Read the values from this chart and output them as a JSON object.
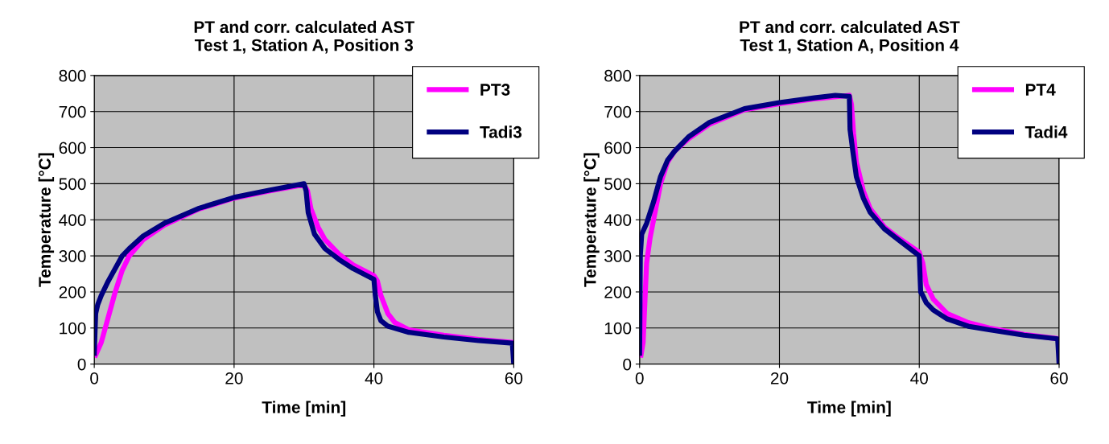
{
  "chart_data": [
    {
      "type": "line",
      "title": "PT and corr. calculated AST\nTest 1, Station A, Position 3",
      "xlabel": "Time [min]",
      "ylabel": "Temperature [°C]",
      "xlim": [
        0,
        60
      ],
      "ylim": [
        0,
        800
      ],
      "xticks": [
        0,
        20,
        40,
        60
      ],
      "yticks": [
        0,
        100,
        200,
        300,
        400,
        500,
        600,
        700,
        800
      ],
      "grid": true,
      "legend": "top right",
      "marker": "none",
      "line_style": "solid",
      "series": [
        {
          "name": "PT3",
          "color": "#ff00ff",
          "x": [
            0.2,
            1,
            2,
            3,
            4,
            5,
            7,
            10,
            15,
            20,
            25,
            30,
            30.5,
            31,
            32,
            33,
            35,
            37,
            40,
            40.5,
            41,
            42,
            43,
            45,
            50,
            55,
            60
          ],
          "values": [
            25,
            60,
            130,
            200,
            260,
            300,
            345,
            385,
            430,
            460,
            480,
            497,
            480,
            430,
            380,
            345,
            305,
            275,
            245,
            230,
            190,
            140,
            115,
            95,
            80,
            68,
            60
          ]
        },
        {
          "name": "Tadi3",
          "color": "#000080",
          "x": [
            0,
            0.2,
            0.5,
            1,
            2,
            3,
            4,
            5,
            7,
            10,
            15,
            20,
            25,
            30,
            30.3,
            30.6,
            31.5,
            33,
            35,
            37,
            40,
            40.2,
            40.5,
            41,
            42,
            45,
            50,
            55,
            59.8,
            60
          ],
          "values": [
            30,
            140,
            165,
            190,
            230,
            265,
            300,
            320,
            355,
            390,
            432,
            462,
            482,
            500,
            480,
            420,
            360,
            320,
            290,
            265,
            235,
            190,
            145,
            120,
            105,
            88,
            75,
            65,
            58,
            0
          ]
        }
      ]
    },
    {
      "type": "line",
      "title": "PT and corr. calculated AST\nTest 1, Station A, Position 4",
      "xlabel": "Time [min]",
      "ylabel": "Temperature [°C]",
      "xlim": [
        0,
        60
      ],
      "ylim": [
        0,
        800
      ],
      "xticks": [
        0,
        20,
        40,
        60
      ],
      "yticks": [
        0,
        100,
        200,
        300,
        400,
        500,
        600,
        700,
        800
      ],
      "grid": true,
      "legend": "top right",
      "marker": "none",
      "line_style": "solid",
      "series": [
        {
          "name": "PT4",
          "color": "#ff00ff",
          "x": [
            0.2,
            0.5,
            1,
            1.5,
            2,
            3,
            4,
            5,
            7,
            10,
            15,
            20,
            25,
            30,
            30.3,
            30.6,
            31,
            32,
            33,
            35,
            37,
            40,
            40.5,
            41,
            42,
            44,
            47,
            50,
            55,
            60
          ],
          "values": [
            25,
            60,
            280,
            350,
            400,
            500,
            560,
            590,
            625,
            665,
            705,
            722,
            735,
            745,
            720,
            640,
            560,
            480,
            430,
            380,
            350,
            310,
            280,
            220,
            180,
            140,
            115,
            100,
            82,
            70
          ]
        },
        {
          "name": "Tadi4",
          "color": "#000080",
          "x": [
            0,
            0.1,
            0.3,
            1,
            2,
            3,
            4,
            5,
            7,
            10,
            15,
            20,
            25,
            28,
            30,
            30.1,
            30.5,
            31,
            32,
            33,
            35,
            37,
            40,
            40.2,
            40.5,
            41,
            42,
            44,
            47,
            50,
            55,
            59.8,
            60
          ],
          "values": [
            30,
            300,
            360,
            390,
            450,
            520,
            565,
            590,
            630,
            670,
            708,
            725,
            738,
            745,
            742,
            650,
            590,
            520,
            460,
            420,
            375,
            345,
            300,
            200,
            190,
            170,
            150,
            125,
            105,
            95,
            80,
            70,
            0
          ]
        }
      ]
    }
  ]
}
